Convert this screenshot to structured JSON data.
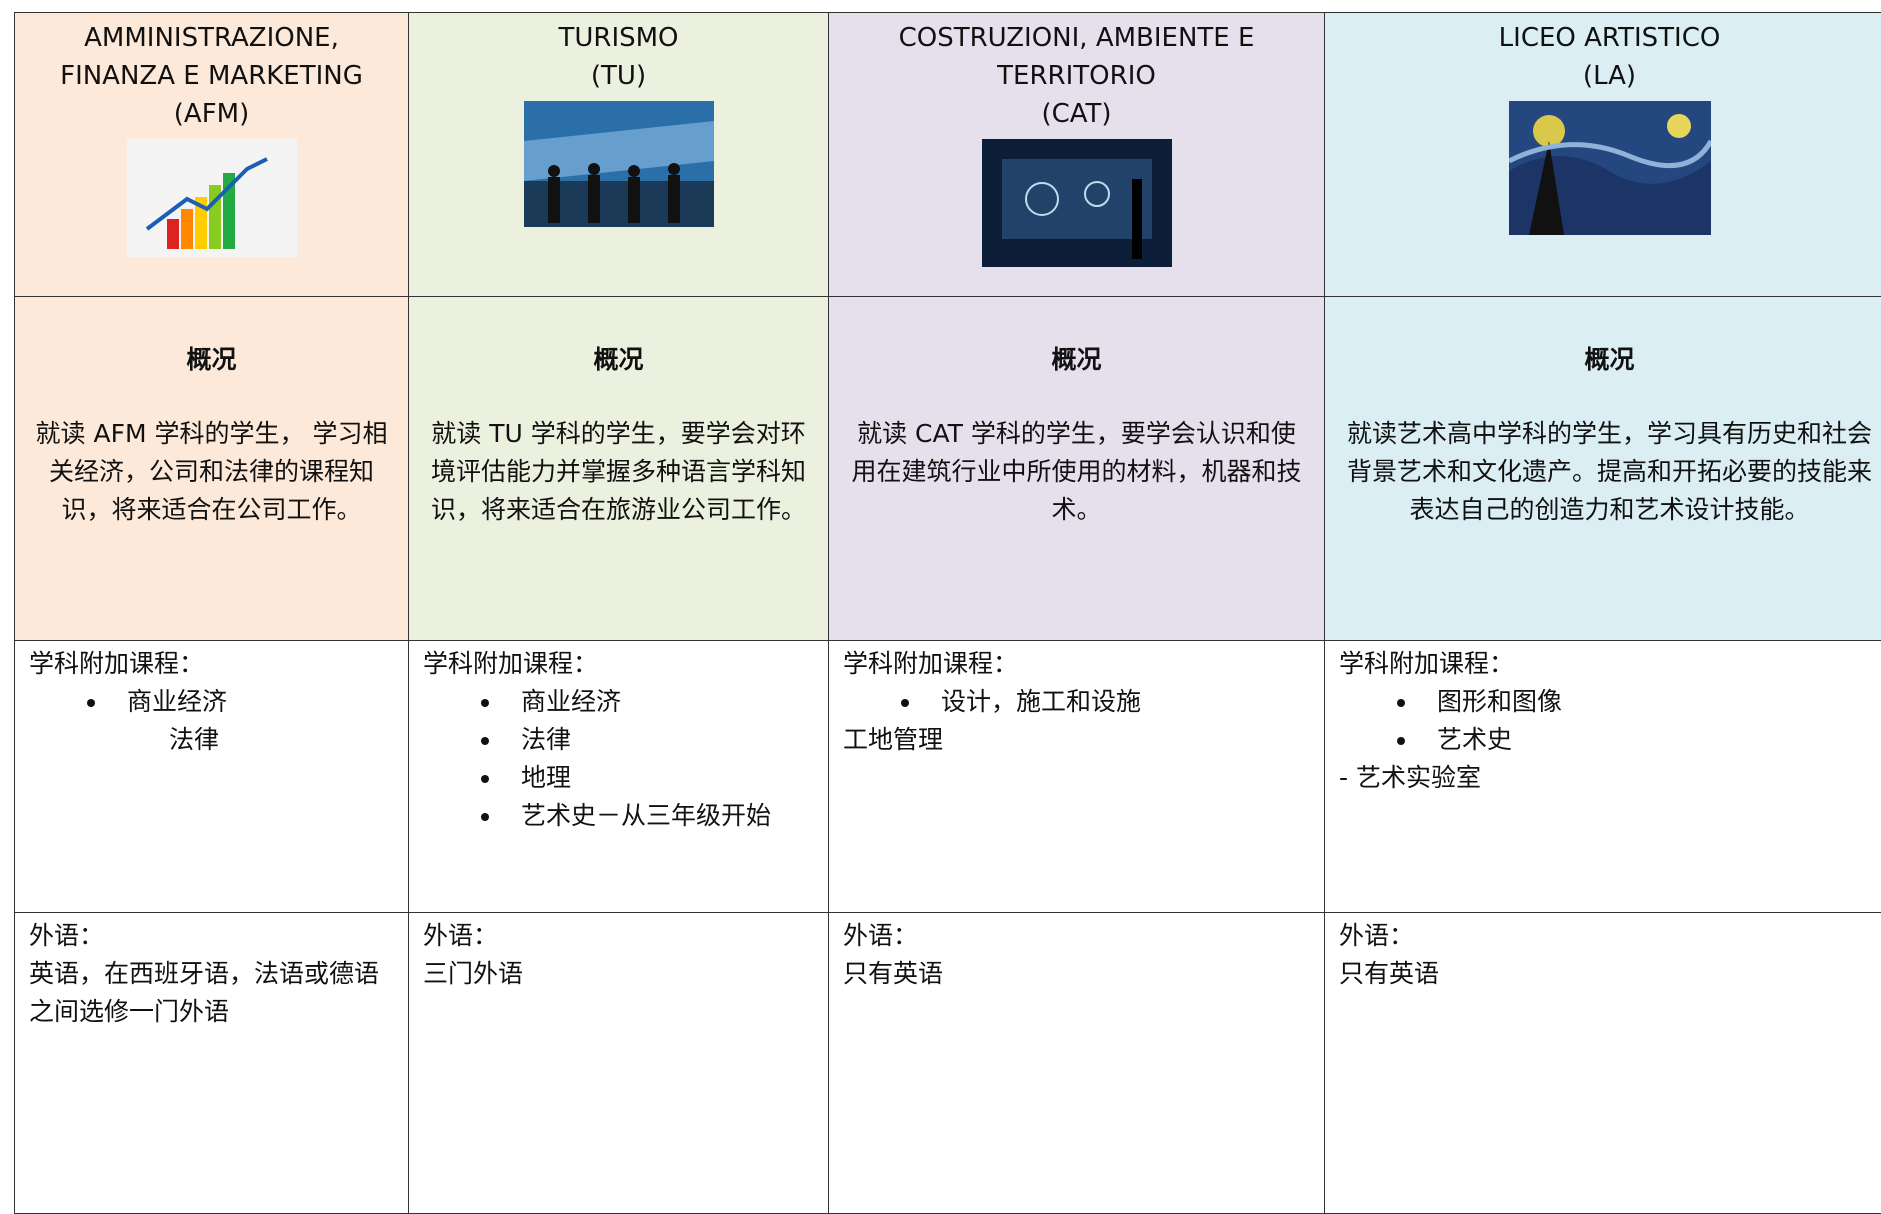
{
  "columns": [
    {
      "title": [
        "AMMINISTRAZIONE,",
        "FINANZA E MARKETING",
        "(AFM)"
      ],
      "overview_heading": "概况",
      "overview": "就读 AFM 学科的学生， 学习相关经济，公司和法律的课程知识，将来适合在公司工作。",
      "extra_heading": "学科附加课程：",
      "extra_bullets": [
        "商业经济"
      ],
      "extra_lines": [
        "法律"
      ],
      "language_heading": "外语：",
      "language": "英语，在西班牙语，法语或德语之间选修一门外语"
    },
    {
      "title": [
        "TURISMO",
        "(TU)"
      ],
      "overview_heading": "概况",
      "overview": "就读 TU 学科的学生，要学会对环境评估能力并掌握多种语言学科知识，将来适合在旅游业公司工作。",
      "extra_heading": "学科附加课程：",
      "extra_bullets": [
        "商业经济",
        "法律",
        "地理",
        "艺术史－从三年级开始"
      ],
      "extra_lines": [],
      "language_heading": "外语：",
      "language": "三门外语"
    },
    {
      "title": [
        "COSTRUZIONI, AMBIENTE E",
        "TERRITORIO",
        "(CAT)"
      ],
      "overview_heading": "概况",
      "overview": "就读 CAT 学科的学生，要学会认识和使用在建筑行业中所使用的材料，机器和技术。",
      "extra_heading": "学科附加课程：",
      "extra_bullets": [
        "设计，施工和设施"
      ],
      "extra_lines": [
        "工地管理"
      ],
      "language_heading": "外语：",
      "language": "只有英语"
    },
    {
      "title": [
        "LICEO ARTISTICO",
        "(LA)"
      ],
      "overview_heading": "概况",
      "overview": "就读艺术高中学科的学生，学习具有历史和社会背景艺术和文化遗产。提高和开拓必要的技能来表达自己的创造力和艺术设计技能。",
      "extra_heading": "学科附加课程：",
      "extra_bullets": [
        "图形和图像",
        "艺术史"
      ],
      "extra_lines": [
        "- 艺术实验室"
      ],
      "language_heading": "外语：",
      "language": "只有英语"
    }
  ]
}
